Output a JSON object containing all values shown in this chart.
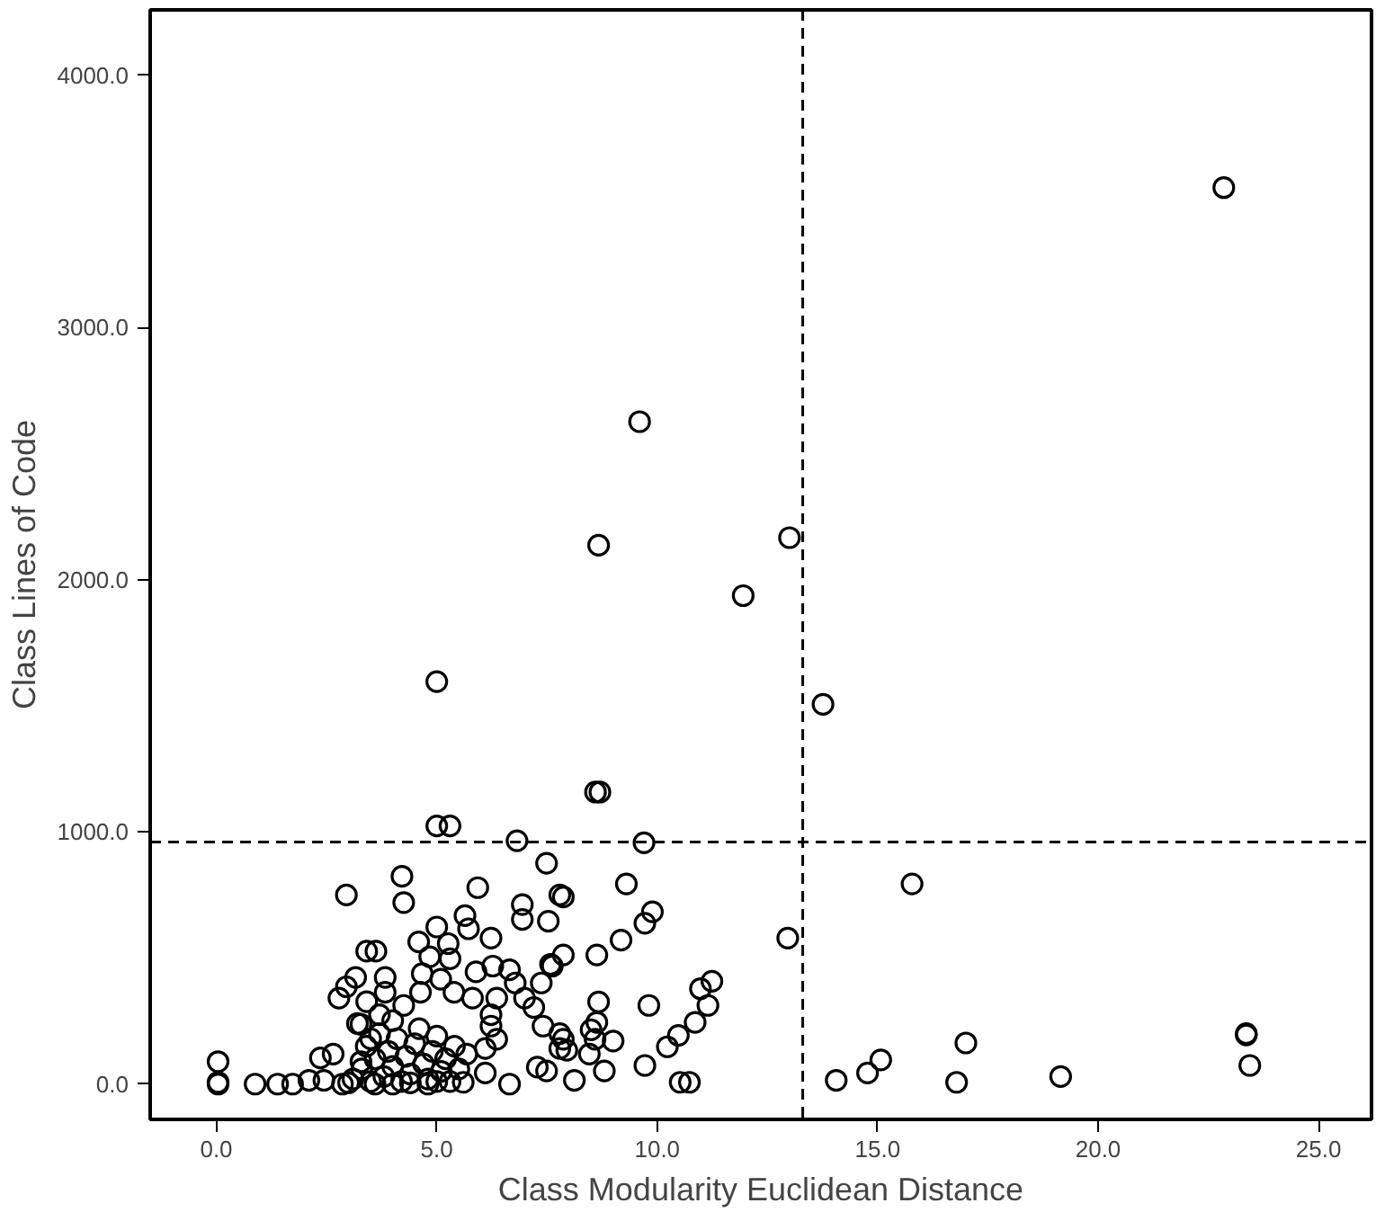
{
  "chart_data": {
    "type": "scatter",
    "xlabel": "Class Modularity Euclidean Distance",
    "ylabel": "Class Lines of Code",
    "xlim": [
      -1.5,
      26.2
    ],
    "ylim": [
      -140,
      4260
    ],
    "xticks": [
      {
        "value": 0,
        "label": "0.0"
      },
      {
        "value": 5,
        "label": "5.0"
      },
      {
        "value": 10,
        "label": "10.0"
      },
      {
        "value": 15,
        "label": "15.0"
      },
      {
        "value": 20,
        "label": "20.0"
      },
      {
        "value": 25,
        "label": "25.0"
      }
    ],
    "yticks": [
      {
        "value": 0,
        "label": "0.0"
      },
      {
        "value": 1000,
        "label": "1000.0"
      },
      {
        "value": 2000,
        "label": "2000.0"
      },
      {
        "value": 3000,
        "label": "3000.0"
      },
      {
        "value": 4000,
        "label": "4000.0"
      }
    ],
    "grid": false,
    "marker": "circle",
    "ref_lines": [
      {
        "axis": "x",
        "value": 13.3,
        "color": "#000000",
        "line_style": "dashed"
      },
      {
        "axis": "y",
        "value": 960,
        "color": "#000000",
        "line_style": "dashed"
      }
    ],
    "series": [
      {
        "color": "#000000",
        "x": [
          22.85,
          9.6,
          8.67,
          13.0,
          11.95,
          13.76,
          5.0,
          5.0,
          5.3,
          8.6,
          8.7,
          6.82,
          9.7,
          7.49,
          4.21,
          2.95,
          5.93,
          4.25,
          6.94,
          6.94,
          7.79,
          7.53,
          5.0,
          5.64,
          5.72,
          6.23,
          4.59,
          5.26,
          3.41,
          3.62,
          4.84,
          5.3,
          4.67,
          5.89,
          6.27,
          6.65,
          3.16,
          3.83,
          2.95,
          5.09,
          5.39,
          7.58,
          6.78,
          7.37,
          2.78,
          3.83,
          4.63,
          3.41,
          4.25,
          5.81,
          6.36,
          6.99,
          7.2,
          3.7,
          4.0,
          6.23,
          7.41,
          7.79,
          6.23,
          6.36,
          3.28,
          0.04,
          0.04,
          0.04,
          0.88,
          1.39,
          1.73,
          2.1,
          2.44,
          2.36,
          2.65,
          3.28,
          2.86,
          3.1,
          3.3,
          3.4,
          3.5,
          3.6,
          3.7,
          3.8,
          3.9,
          4.0,
          4.1,
          4.2,
          4.3,
          4.4,
          4.5,
          4.6,
          4.7,
          4.8,
          4.9,
          5.0,
          5.1,
          5.2,
          5.3,
          5.4,
          5.5,
          3.2,
          3.5,
          4.0,
          4.4,
          4.8,
          5.0,
          3.6,
          3.0,
          5.6,
          6.1,
          6.65,
          5.68,
          6.1,
          7.28,
          7.79,
          9.3,
          7.87,
          9.72,
          9.89,
          9.18,
          8.63,
          7.87,
          7.62,
          12.96,
          11.24,
          10.98,
          11.15,
          10.86,
          10.48,
          10.23,
          9.81,
          8.67,
          8.63,
          8.5,
          8.59,
          9.0,
          7.87,
          7.95,
          8.46,
          8.8,
          9.72,
          8.12,
          10.52,
          10.73,
          7.49,
          14.06,
          14.77,
          15.07,
          16.79,
          17.0,
          19.15,
          23.36,
          23.36,
          23.44,
          15.78
        ],
        "values": [
          3555,
          2627,
          2137,
          2167,
          1937,
          1506,
          1596,
          1024,
          1024,
          1158,
          1158,
          965,
          957,
          876,
          824,
          750,
          779,
          720,
          712,
          653,
          750,
          646,
          623,
          668,
          616,
          579,
          564,
          557,
          527,
          527,
          505,
          497,
          438,
          445,
          468,
          453,
          423,
          423,
          386,
          416,
          364,
          475,
          401,
          401,
          341,
          364,
          364,
          327,
          312,
          341,
          341,
          341,
          304,
          275,
          252,
          275,
          230,
          200,
          230,
          178,
          237,
          89,
          7,
          0,
          0,
          0,
          0,
          15,
          15,
          104,
          119,
          89,
          0,
          20,
          60,
          150,
          10,
          100,
          200,
          30,
          130,
          70,
          180,
          10,
          110,
          40,
          160,
          220,
          80,
          20,
          130,
          190,
          50,
          100,
          10,
          150,
          60,
          240,
          180,
          0,
          5,
          0,
          10,
          0,
          5,
          7,
          44,
          0,
          119,
          141,
          67,
          141,
          794,
          742,
          638,
          683,
          571,
          512,
          512,
          468,
          579,
          408,
          378,
          312,
          245,
          193,
          148,
          312,
          326,
          245,
          215,
          178,
          171,
          178,
          134,
          119,
          52,
          74,
          15,
          7,
          7,
          52,
          15,
          44,
          96,
          7,
          163,
          30,
          200,
          195,
          74,
          794
        ]
      }
    ]
  }
}
